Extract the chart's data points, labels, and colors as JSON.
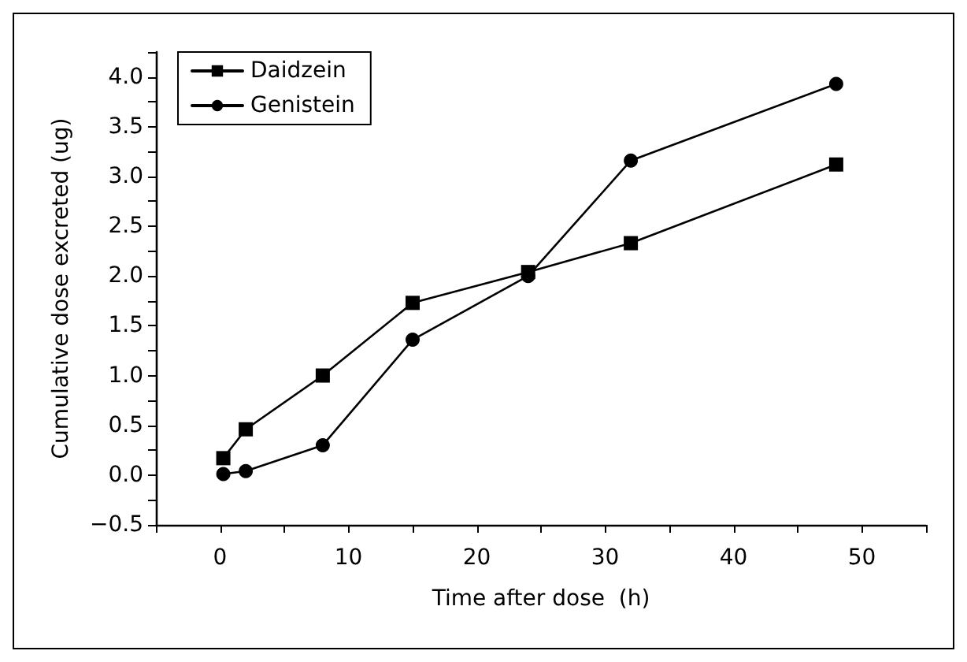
{
  "chart_data": {
    "type": "line",
    "xlabel": "Time after dose  (h)",
    "ylabel": "Cumulative dose excreted (ug)",
    "xlim": [
      -5,
      55
    ],
    "xticks": [
      {
        "value": -5,
        "label": null
      },
      0,
      {
        "value": 5,
        "label": null
      },
      10,
      {
        "value": 15,
        "label": null
      },
      20,
      {
        "value": 25,
        "label": null
      },
      30,
      {
        "value": 35,
        "label": null
      },
      40,
      {
        "value": 45,
        "label": null
      },
      50,
      {
        "value": 55,
        "label": null
      }
    ],
    "ylim": [
      -0.5,
      4.25
    ],
    "yticks": [
      {
        "value": -0.5,
        "label": "−0.5"
      },
      {
        "value": -0.25,
        "label": null
      },
      {
        "value": 0,
        "label": "0.0"
      },
      {
        "value": 0.25,
        "label": null
      },
      {
        "value": 0.5,
        "label": "0.5"
      },
      {
        "value": 0.75,
        "label": null
      },
      {
        "value": 1,
        "label": "1.0"
      },
      {
        "value": 1.25,
        "label": null
      },
      {
        "value": 1.5,
        "label": "1.5"
      },
      {
        "value": 1.75,
        "label": null
      },
      {
        "value": 2,
        "label": "2.0"
      },
      {
        "value": 2.25,
        "label": null
      },
      {
        "value": 2.5,
        "label": "2.5"
      },
      {
        "value": 2.75,
        "label": null
      },
      {
        "value": 3,
        "label": "3.0"
      },
      {
        "value": 3.25,
        "label": null
      },
      {
        "value": 3.5,
        "label": "3.5"
      },
      {
        "value": 3.75,
        "label": null
      },
      {
        "value": 4,
        "label": "4.0"
      },
      {
        "value": 4.25,
        "label": null
      }
    ],
    "grid": false,
    "legend": "top left",
    "line_style": "solid",
    "series": [
      {
        "name": "Daidzein",
        "color": "#000000",
        "marker": "square",
        "x": [
          0.25,
          2,
          8,
          15,
          24,
          32,
          48
        ],
        "values": [
          0.17,
          0.46,
          1.0,
          1.73,
          2.04,
          2.33,
          3.12
        ]
      },
      {
        "name": "Genistein",
        "color": "#000000",
        "marker": "circle",
        "x": [
          0.25,
          2,
          8,
          15,
          24,
          32,
          48
        ],
        "values": [
          0.01,
          0.04,
          0.3,
          1.36,
          2.0,
          3.16,
          3.93
        ]
      }
    ]
  }
}
